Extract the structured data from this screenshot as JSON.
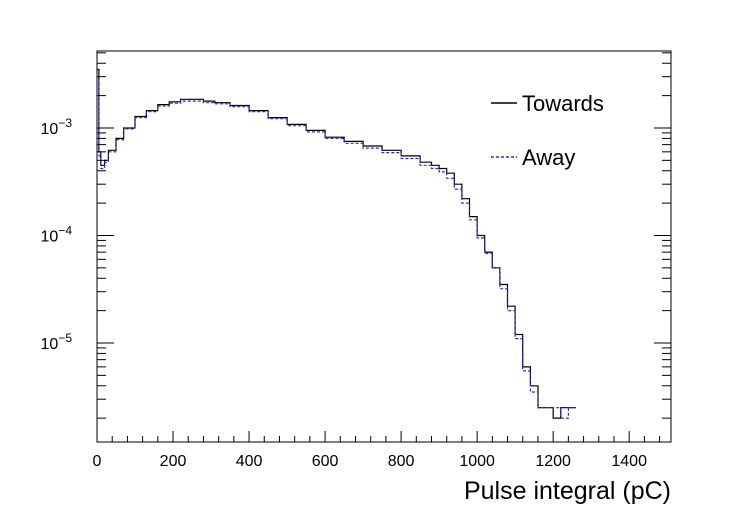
{
  "chart_data": {
    "type": "line",
    "title": "",
    "xlabel": "Pulse integral (pC)",
    "ylabel": "",
    "xlim": [
      0,
      1510
    ],
    "ylim": [
      1.2e-06,
      0.0052
    ],
    "yscale": "log",
    "grid": false,
    "legend_position": "top-right",
    "x_ticks": [
      0,
      200,
      400,
      600,
      800,
      1000,
      1200,
      1400
    ],
    "y_ticks": [
      {
        "value": 0.001,
        "base": "10",
        "exp": "−3"
      },
      {
        "value": 0.0001,
        "base": "10",
        "exp": "−4"
      },
      {
        "value": 1e-05,
        "base": "10",
        "exp": "−5"
      }
    ],
    "series": [
      {
        "name": "Towards",
        "color": "#000000",
        "line_style": "solid",
        "x": [
          0,
          5,
          10,
          20,
          30,
          50,
          70,
          100,
          130,
          160,
          190,
          220,
          250,
          280,
          310,
          350,
          400,
          450,
          500,
          550,
          600,
          650,
          700,
          750,
          800,
          850,
          880,
          900,
          920,
          940,
          960,
          980,
          1000,
          1020,
          1040,
          1060,
          1080,
          1100,
          1120,
          1140,
          1160,
          1180,
          1200,
          1220,
          1240
        ],
        "y": [
          0.0035,
          0.0006,
          0.00045,
          0.0005,
          0.00062,
          0.0008,
          0.001,
          0.00128,
          0.00145,
          0.00165,
          0.00175,
          0.00185,
          0.00185,
          0.00178,
          0.00172,
          0.00162,
          0.00145,
          0.00125,
          0.00108,
          0.00095,
          0.00082,
          0.00075,
          0.00068,
          0.00062,
          0.00055,
          0.00048,
          0.00045,
          0.00042,
          0.00038,
          0.0003,
          0.00022,
          0.00015,
          0.0001,
          7e-05,
          5e-05,
          3.5e-05,
          2.2e-05,
          1.2e-05,
          6e-06,
          4e-06,
          2.5e-06,
          2.5e-06,
          2e-06,
          2.5e-06,
          2.5e-06
        ]
      },
      {
        "name": "Away",
        "color": "#2b2bd6",
        "line_style": "dashed",
        "x": [
          0,
          5,
          10,
          20,
          30,
          50,
          70,
          100,
          130,
          160,
          190,
          220,
          250,
          280,
          310,
          350,
          400,
          450,
          500,
          550,
          600,
          650,
          700,
          750,
          800,
          850,
          880,
          900,
          920,
          940,
          960,
          980,
          1000,
          1020,
          1040,
          1060,
          1080,
          1100,
          1120,
          1140,
          1160,
          1180,
          1200,
          1220,
          1240
        ],
        "y": [
          0.003,
          0.00055,
          0.00042,
          0.00048,
          0.0006,
          0.00078,
          0.00098,
          0.00125,
          0.00142,
          0.0016,
          0.0017,
          0.00178,
          0.00178,
          0.00172,
          0.00168,
          0.00158,
          0.00142,
          0.00122,
          0.00105,
          0.00092,
          0.0008,
          0.00072,
          0.00065,
          0.00059,
          0.00052,
          0.00045,
          0.00042,
          0.00039,
          0.00034,
          0.00027,
          0.0002,
          0.00014,
          9.5e-05,
          6.8e-05,
          5e-05,
          3.2e-05,
          2e-05,
          1.1e-05,
          5.5e-06,
          3.5e-06,
          2.5e-06,
          2.5e-06,
          2.5e-06,
          2e-06,
          2.5e-06
        ]
      }
    ]
  }
}
